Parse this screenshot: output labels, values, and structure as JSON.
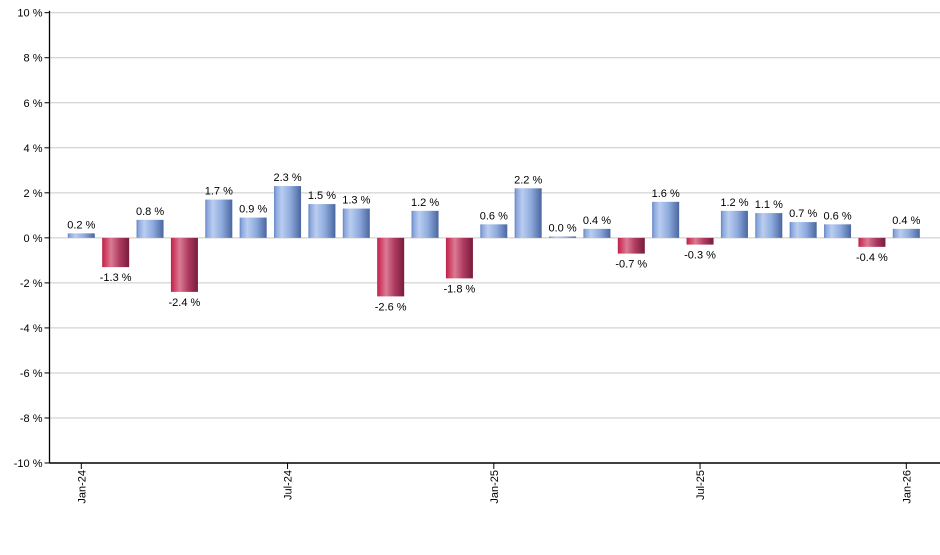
{
  "chart_data": {
    "type": "bar",
    "title": "",
    "xlabel": "",
    "ylabel": "",
    "legend": "none",
    "grid": true,
    "categories": [
      "Jan-24",
      "Feb-24",
      "Mar-24",
      "Apr-24",
      "May-24",
      "Jun-24",
      "Jul-24",
      "Aug-24",
      "Sep-24",
      "Oct-24",
      "Nov-24",
      "Dec-24",
      "Jan-25",
      "Feb-25",
      "Mar-25",
      "Apr-25",
      "May-25",
      "Jun-25",
      "Jul-25",
      "Aug-25",
      "Sep-25",
      "Oct-25",
      "Nov-25",
      "Dec-25",
      "Jan-26"
    ],
    "values": [
      0.2,
      -1.3,
      0.8,
      -2.4,
      1.7,
      0.9,
      2.3,
      1.5,
      1.3,
      -2.6,
      1.2,
      -1.8,
      0.6,
      2.2,
      0.0,
      0.4,
      -0.7,
      1.6,
      -0.3,
      1.2,
      1.1,
      0.7,
      0.6,
      -0.4,
      0.4
    ],
    "point_labels": [
      "0.2 %",
      "-1.3 %",
      "0.8 %",
      "-2.4 %",
      "1.7 %",
      "0.9 %",
      "2.3 %",
      "1.5 %",
      "1.3 %",
      "-2.6 %",
      "1.2 %",
      "-1.8 %",
      "0.6 %",
      "2.2 %",
      "0.0 %",
      "0.4 %",
      "-0.7 %",
      "1.6 %",
      "-0.3 %",
      "1.2 %",
      "1.1 %",
      "0.7 %",
      "0.6 %",
      "-0.4 %",
      "0.4 %"
    ],
    "y_axis": {
      "min": -10,
      "max": 10,
      "step": 2,
      "tick_labels": [
        "10 %",
        "8 %",
        "6 %",
        "4 %",
        "2 %",
        "0 %",
        "-2 %",
        "-4 %",
        "-6 %",
        "-8 %",
        "-10 %"
      ]
    },
    "x_axis": {
      "ticks": [
        {
          "index": 0,
          "label": "Jan-24"
        },
        {
          "index": 6,
          "label": "Jul-24"
        },
        {
          "index": 12,
          "label": "Jan-25"
        },
        {
          "index": 18,
          "label": "Jul-25"
        },
        {
          "index": 24,
          "label": "Jan-26"
        }
      ]
    },
    "colors": {
      "positive_gradient": [
        {
          "offset": 0,
          "color": "#5E80BE"
        },
        {
          "offset": 0.07,
          "color": "#8AA6DC"
        },
        {
          "offset": 0.28,
          "color": "#BACDF0"
        },
        {
          "offset": 0.6,
          "color": "#8FACDE"
        },
        {
          "offset": 1,
          "color": "#4A66A0"
        }
      ],
      "negative_gradient": [
        {
          "offset": 0,
          "color": "#B32449"
        },
        {
          "offset": 0.07,
          "color": "#CC3158"
        },
        {
          "offset": 0.33,
          "color": "#DA7B93"
        },
        {
          "offset": 0.65,
          "color": "#AE3A60"
        },
        {
          "offset": 1,
          "color": "#771D3A"
        }
      ],
      "grid": "#C9C9C9",
      "axis": "#000000",
      "label": "#000000",
      "background": "#FFFFFF"
    }
  }
}
